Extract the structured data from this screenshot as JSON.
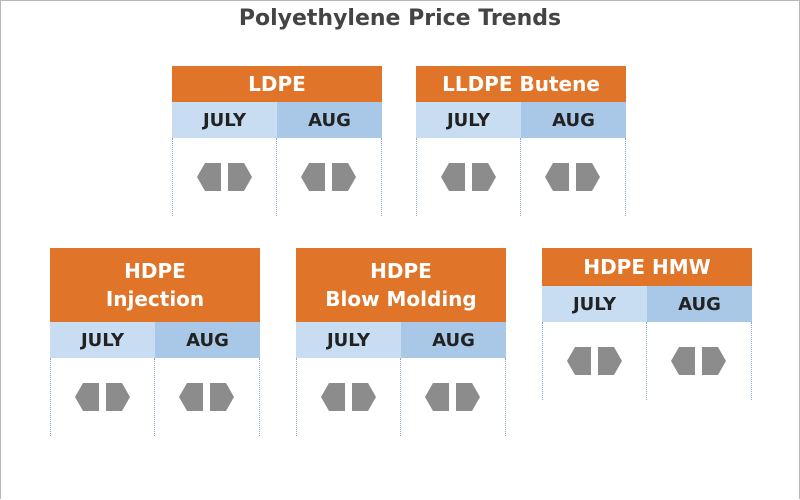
{
  "title": "Polyethylene Price Trends",
  "colors": {
    "header": "#e0752a",
    "july": "#c9ddf2",
    "aug": "#a9c8e8",
    "arrow": "#8c8c8c"
  },
  "icons": {
    "trend": "left-right-arrow-icon"
  },
  "cards": [
    {
      "name": "ldpe",
      "line1": "LDPE",
      "line2": "",
      "july": "JULY",
      "aug": "AUG"
    },
    {
      "name": "lldpe-butene",
      "line1": "LLDPE Butene",
      "line2": "",
      "july": "JULY",
      "aug": "AUG"
    },
    {
      "name": "hdpe-injection",
      "line1": "HDPE",
      "line2": "Injection",
      "july": "JULY",
      "aug": "AUG"
    },
    {
      "name": "hdpe-blow-molding",
      "line1": "HDPE",
      "line2": "Blow Molding",
      "july": "JULY",
      "aug": "AUG"
    },
    {
      "name": "hdpe-hmw",
      "line1": "HDPE HMW",
      "line2": "",
      "july": "JULY",
      "aug": "AUG"
    }
  ]
}
